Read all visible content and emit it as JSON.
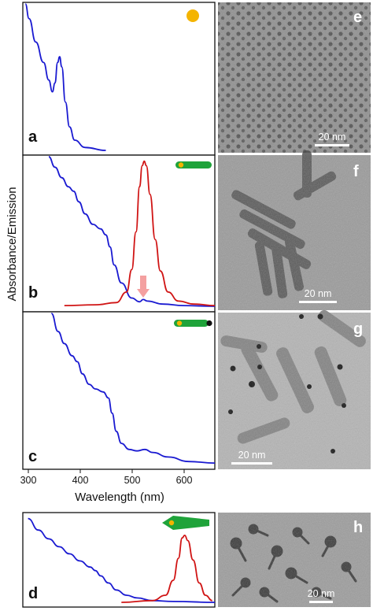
{
  "y_axis_label": "Absorbance/Emission",
  "x_axis_label": "Wavelength (nm)",
  "x_ticks": [
    "300",
    "400",
    "500",
    "600"
  ],
  "panels": [
    {
      "label": "a",
      "shape": "sphere"
    },
    {
      "label": "b",
      "shape": "rod-with-dot"
    },
    {
      "label": "c",
      "shape": "rod-with-dot-and-tip"
    },
    {
      "label": "d",
      "shape": "tetrapod-arrow"
    }
  ],
  "tem_images": [
    {
      "label": "e",
      "scale_bar": "20 nm"
    },
    {
      "label": "f",
      "scale_bar": "20 nm"
    },
    {
      "label": "g",
      "scale_bar": "20 nm"
    },
    {
      "label": "h",
      "scale_bar": "20 nm"
    }
  ],
  "colors": {
    "absorbance": "#1a1ad1",
    "emission": "#d01414",
    "sphere": "#f4b400",
    "rod": "#1fa33a",
    "arrow": "#f4a0a0",
    "tem_background": "#9a9a9a"
  },
  "chart_data": [
    {
      "type": "line",
      "panel": "a",
      "xlim": [
        290,
        660
      ],
      "series": [
        {
          "values": [
            [
              295,
              1.0
            ],
            [
              302,
              0.9
            ],
            [
              315,
              0.74
            ],
            [
              330,
              0.6
            ],
            [
              340,
              0.48
            ],
            [
              347,
              0.4
            ],
            [
              352,
              0.46
            ],
            [
              357,
              0.6
            ],
            [
              361,
              0.64
            ],
            [
              365,
              0.57
            ],
            [
              372,
              0.33
            ],
            [
              380,
              0.16
            ],
            [
              390,
              0.07
            ],
            [
              410,
              0.02
            ],
            [
              450,
              0.0
            ]
          ]
        }
      ]
    },
    {
      "type": "line",
      "panel": "b",
      "xlim": [
        290,
        660
      ],
      "series": [
        {
          "values": [
            [
              340,
              1.0
            ],
            [
              352,
              0.93
            ],
            [
              365,
              0.86
            ],
            [
              378,
              0.8
            ],
            [
              388,
              0.77
            ],
            [
              398,
              0.7
            ],
            [
              410,
              0.62
            ],
            [
              425,
              0.55
            ],
            [
              440,
              0.52
            ],
            [
              450,
              0.48
            ],
            [
              458,
              0.4
            ],
            [
              466,
              0.28
            ],
            [
              480,
              0.16
            ],
            [
              500,
              0.06
            ],
            [
              515,
              0.035
            ],
            [
              522,
              0.05
            ],
            [
              530,
              0.04
            ],
            [
              560,
              0.02
            ],
            [
              600,
              0.01
            ],
            [
              660,
              0.005
            ]
          ]
        },
        {
          "values": [
            [
              370,
              0.01
            ],
            [
              430,
              0.015
            ],
            [
              470,
              0.03
            ],
            [
              490,
              0.1
            ],
            [
              500,
              0.25
            ],
            [
              508,
              0.5
            ],
            [
              515,
              0.8
            ],
            [
              520,
              0.94
            ],
            [
              524,
              0.97
            ],
            [
              528,
              0.94
            ],
            [
              535,
              0.75
            ],
            [
              545,
              0.45
            ],
            [
              555,
              0.24
            ],
            [
              570,
              0.1
            ],
            [
              590,
              0.04
            ],
            [
              620,
              0.02
            ],
            [
              660,
              0.01
            ]
          ]
        }
      ]
    },
    {
      "type": "line",
      "panel": "c",
      "xlim": [
        290,
        660
      ],
      "series": [
        {
          "values": [
            [
              345,
              1.0
            ],
            [
              358,
              0.88
            ],
            [
              370,
              0.8
            ],
            [
              385,
              0.72
            ],
            [
              395,
              0.68
            ],
            [
              405,
              0.6
            ],
            [
              418,
              0.53
            ],
            [
              430,
              0.5
            ],
            [
              445,
              0.48
            ],
            [
              455,
              0.44
            ],
            [
              462,
              0.34
            ],
            [
              470,
              0.22
            ],
            [
              480,
              0.14
            ],
            [
              495,
              0.1
            ],
            [
              510,
              0.09
            ],
            [
              525,
              0.1
            ],
            [
              540,
              0.08
            ],
            [
              570,
              0.05
            ],
            [
              610,
              0.02
            ],
            [
              660,
              0.01
            ]
          ]
        }
      ]
    },
    {
      "type": "line",
      "panel": "d",
      "xlim": [
        290,
        660
      ],
      "series": [
        {
          "values": [
            [
              300,
              0.95
            ],
            [
              320,
              0.82
            ],
            [
              340,
              0.72
            ],
            [
              360,
              0.63
            ],
            [
              380,
              0.55
            ],
            [
              400,
              0.47
            ],
            [
              420,
              0.4
            ],
            [
              430,
              0.36
            ],
            [
              440,
              0.3
            ],
            [
              455,
              0.22
            ],
            [
              470,
              0.14
            ],
            [
              490,
              0.08
            ],
            [
              510,
              0.05
            ],
            [
              540,
              0.02
            ],
            [
              580,
              0.01
            ],
            [
              660,
              0.0
            ]
          ]
        },
        {
          "values": [
            [
              480,
              0.0
            ],
            [
              540,
              0.02
            ],
            [
              565,
              0.08
            ],
            [
              580,
              0.25
            ],
            [
              590,
              0.5
            ],
            [
              597,
              0.73
            ],
            [
              602,
              0.76
            ],
            [
              608,
              0.7
            ],
            [
              618,
              0.48
            ],
            [
              630,
              0.22
            ],
            [
              642,
              0.08
            ],
            [
              655,
              0.02
            ]
          ]
        }
      ]
    }
  ]
}
